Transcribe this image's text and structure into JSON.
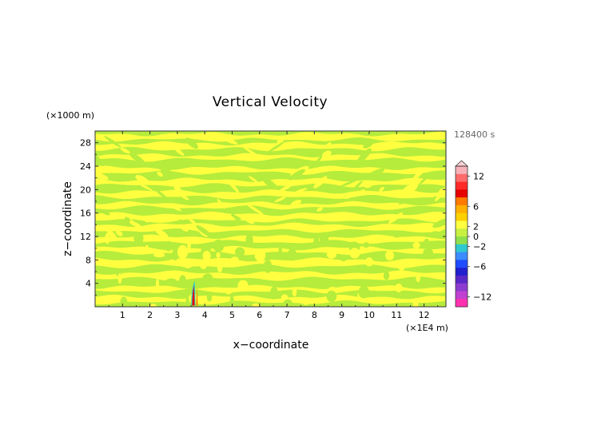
{
  "chart_data": {
    "type": "heatmap",
    "title": "Vertical Velocity",
    "xlabel": "x−coordinate",
    "ylabel": "z−coordinate",
    "x_unit": "(×1E4 m)",
    "y_unit": "(×1000 m)",
    "time_label": "128400 s",
    "xlim": [
      0,
      12.8
    ],
    "ylim": [
      0,
      30
    ],
    "x_ticks": [
      "1",
      "2",
      "3",
      "4",
      "5",
      "6",
      "7",
      "8",
      "9",
      "10",
      "11",
      "12"
    ],
    "y_ticks": [
      "4",
      "8",
      "12",
      "16",
      "20",
      "24",
      "28"
    ],
    "colorbar": {
      "labels": [
        "12",
        "6",
        "2",
        "0",
        "−2",
        "−6",
        "−12"
      ],
      "range": [
        -14,
        14
      ],
      "colors": [
        "#f7b2b8",
        "#ff6b6b",
        "#ff2a2a",
        "#e60000",
        "#ff7a00",
        "#ffb000",
        "#ffd000",
        "#ffff40",
        "#c8f040",
        "#90e04a",
        "#30c8d0",
        "#3c8cff",
        "#1f4cff",
        "#2020d0",
        "#5a28c8",
        "#8c3cd0",
        "#c040d0",
        "#ff30b0"
      ],
      "background_colors": {
        "yellow": "#ffff40",
        "green": "#b6ec3c"
      }
    },
    "bands": [
      29.0,
      27.4,
      25.5,
      23.3,
      21.2,
      19.2,
      17.3,
      15.3,
      13.5,
      11.5,
      9.6,
      7.5,
      5.3,
      3.0,
      1.2
    ],
    "feature": {
      "x": 3.6,
      "z_top": 4.5,
      "values": [
        "positive",
        "negative"
      ]
    }
  }
}
